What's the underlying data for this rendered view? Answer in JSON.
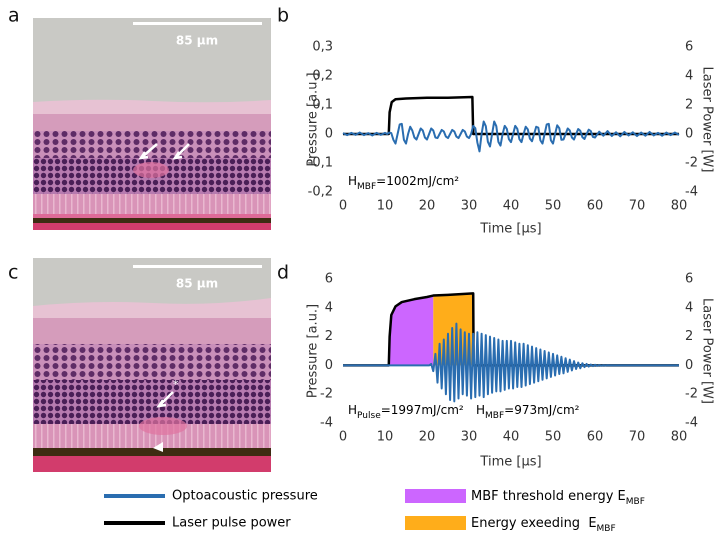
{
  "figure": {
    "panel_labels": [
      "a",
      "b",
      "c",
      "d"
    ],
    "scale_bar_labels": [
      "85 µm",
      "85 µm"
    ]
  },
  "chart_data": [
    {
      "type": "line",
      "xlabel": "Time [µs]",
      "ylabel": "Pressure [a.u.]",
      "y2label": "Laser Power [W]",
      "xlim": [
        0,
        80
      ],
      "xticks": [
        0,
        10,
        20,
        30,
        40,
        50,
        60,
        70,
        80
      ],
      "ylim": [
        -0.2,
        0.3
      ],
      "yticks": [
        {
          "value": -0.2,
          "label": "-0,2"
        },
        {
          "value": -0.1,
          "label": "-0,1"
        },
        0,
        {
          "value": 0.1,
          "label": "0,1"
        },
        {
          "value": 0.2,
          "label": "0,2"
        },
        {
          "value": 0.3,
          "label": "0,3"
        }
      ],
      "y2lim": [
        -4,
        6
      ],
      "y2ticks": [
        -4,
        -2,
        0,
        2,
        4,
        6
      ],
      "grid": false,
      "series": [
        {
          "color": "#2a6db0",
          "x": [
            0,
            1,
            2,
            3,
            4,
            5,
            6,
            7,
            8,
            9,
            10,
            10.5,
            11,
            11.5,
            12,
            12.5,
            13,
            13.5,
            14,
            14.5,
            15,
            15.5,
            16,
            16.5,
            17,
            17.5,
            18,
            18.5,
            19,
            19.5,
            20,
            20.5,
            21,
            21.5,
            22,
            22.5,
            23,
            23.5,
            24,
            24.5,
            25,
            25.5,
            26,
            26.5,
            27,
            27.5,
            28,
            28.5,
            29,
            29.5,
            30,
            30.5,
            31,
            31.5,
            32,
            32.5,
            33,
            33.5,
            34,
            34.5,
            35,
            35.5,
            36,
            36.5,
            37,
            37.5,
            38,
            38.5,
            39,
            39.5,
            40,
            40.5,
            41,
            41.5,
            42,
            42.5,
            43,
            43.5,
            44,
            44.5,
            45,
            45.5,
            46,
            46.5,
            47,
            47.5,
            48,
            48.5,
            49,
            49.5,
            50,
            50.5,
            51,
            51.5,
            52,
            52.5,
            53,
            53.5,
            54,
            54.5,
            55,
            55.5,
            56,
            56.5,
            57,
            57.5,
            58,
            58.5,
            59,
            59.5,
            60,
            61,
            62,
            63,
            64,
            65,
            66,
            67,
            68,
            69,
            70,
            71,
            72,
            73,
            74,
            75,
            76,
            77,
            78,
            79,
            80
          ],
          "values": [
            0.003,
            -0.004,
            0.004,
            -0.003,
            0.005,
            -0.004,
            0.003,
            -0.005,
            0.004,
            -0.003,
            0.004,
            0,
            0.005,
            0.003,
            -0.02,
            -0.033,
            0,
            0.033,
            0.035,
            -0.02,
            -0.033,
            0,
            0.025,
            0.012,
            -0.012,
            -0.019,
            0,
            0.019,
            0.012,
            -0.012,
            -0.019,
            0,
            0.019,
            0.012,
            -0.012,
            -0.014,
            0,
            0.014,
            0.009,
            -0.009,
            -0.014,
            0,
            0.014,
            0.009,
            -0.009,
            -0.014,
            0,
            0.014,
            0.009,
            -0.009,
            -0.014,
            0,
            0.028,
            0.02,
            -0.03,
            -0.06,
            0,
            0.043,
            0.027,
            -0.027,
            -0.043,
            0,
            0.043,
            0.027,
            -0.027,
            -0.04,
            0,
            0.028,
            0.018,
            -0.018,
            -0.028,
            0,
            0.028,
            0.018,
            -0.018,
            -0.028,
            0,
            0.025,
            0.016,
            -0.016,
            -0.025,
            0,
            0.025,
            0.022,
            -0.022,
            -0.033,
            0,
            0.033,
            0.035,
            -0.022,
            -0.033,
            0,
            0.03,
            0.02,
            -0.02,
            -0.019,
            0,
            0.019,
            0.012,
            -0.012,
            -0.019,
            0,
            0.017,
            0.011,
            -0.011,
            -0.017,
            0,
            0.015,
            0.01,
            -0.01,
            -0.012,
            0.008,
            -0.006,
            0.01,
            -0.007,
            0.006,
            -0.008,
            0.007,
            -0.005,
            0.006,
            -0.007,
            0.005,
            -0.006,
            0.007,
            -0.005,
            0.004,
            -0.006,
            0.005,
            -0.004,
            0.005,
            -0.003
          ]
        },
        {
          "color": "#000000",
          "axis": "y2",
          "x": [
            0,
            10.9,
            11.1,
            11.6,
            12.5,
            15,
            20,
            25,
            30.8,
            31,
            80
          ],
          "values": [
            0,
            0,
            1.5,
            2.2,
            2.4,
            2.45,
            2.5,
            2.5,
            2.55,
            0,
            0
          ]
        }
      ],
      "annotations": [
        {
          "text": "H",
          "subscript": "MBF",
          "suffix": "=1002mJ/cm²"
        }
      ]
    },
    {
      "type": "line",
      "xlabel": "Time [µs]",
      "ylabel": "Pressure [a.u.]",
      "y2label": "Laser Power [W]",
      "xlim": [
        0,
        80
      ],
      "xticks": [
        0,
        10,
        20,
        30,
        40,
        50,
        60,
        70,
        80
      ],
      "ylim": [
        -4,
        6
      ],
      "yticks": [
        -4,
        -2,
        0,
        2,
        4,
        6
      ],
      "y2lim": [
        -4,
        6
      ],
      "y2ticks": [
        -4,
        -2,
        0,
        2,
        4,
        6
      ],
      "grid": false,
      "series": [
        {
          "name": "Optoacoustic pressure",
          "color": "#2a6db0",
          "x": [
            0,
            1,
            2,
            3,
            4,
            5,
            6,
            7,
            8,
            9,
            10,
            11,
            12,
            13,
            14,
            15,
            16,
            17,
            18,
            19,
            20,
            20.5,
            21,
            21.5,
            22,
            22.5,
            23,
            23.5,
            24,
            24.5,
            25,
            25.5,
            26,
            26.5,
            27,
            27.5,
            28,
            28.5,
            29,
            29.5,
            30,
            30.5,
            31,
            31.5,
            32,
            32.5,
            33,
            33.5,
            34,
            34.5,
            35,
            35.5,
            36,
            36.5,
            37,
            37.5,
            38,
            38.5,
            39,
            39.5,
            40,
            40.5,
            41,
            41.5,
            42,
            42.5,
            43,
            43.5,
            44,
            44.5,
            45,
            45.5,
            46,
            46.5,
            47,
            47.5,
            48,
            48.5,
            49,
            49.5,
            50,
            50.5,
            51,
            51.5,
            52,
            52.5,
            53,
            53.5,
            54,
            54.5,
            55,
            55.5,
            56,
            56.5,
            57,
            57.5,
            58,
            58.5,
            59,
            59.5,
            60,
            60.5,
            61,
            61.5,
            62,
            62.5,
            63,
            63.5,
            64,
            64.5,
            65,
            66,
            67,
            68,
            69,
            70,
            71,
            72,
            73,
            74,
            75,
            76,
            77,
            78,
            79,
            80
          ],
          "values": [
            0,
            0,
            0,
            0,
            0,
            0,
            0,
            0,
            0,
            0,
            0,
            0,
            0,
            0,
            0,
            0,
            0,
            0,
            0,
            0,
            0,
            0,
            0.1,
            -0.4,
            0.8,
            -1.2,
            1.5,
            -1.6,
            1.8,
            -2.0,
            2.2,
            -2.4,
            2.6,
            -2.5,
            2.9,
            -2.3,
            2.5,
            -2.0,
            2.3,
            -2.1,
            2.2,
            -2.3,
            2.2,
            -2.2,
            2.3,
            -2.1,
            2.2,
            -2.2,
            2.1,
            -2.0,
            2.0,
            -1.9,
            1.9,
            -1.8,
            1.8,
            -1.8,
            1.7,
            -1.7,
            1.7,
            -1.6,
            1.7,
            -1.6,
            1.6,
            -1.5,
            1.5,
            -1.5,
            1.5,
            -1.4,
            1.4,
            -1.3,
            1.3,
            -1.2,
            1.2,
            -1.1,
            1.1,
            -1.0,
            1.0,
            -0.9,
            0.9,
            -0.8,
            0.8,
            -0.7,
            0.7,
            -0.6,
            0.6,
            -0.55,
            0.5,
            -0.45,
            0.4,
            -0.35,
            0.3,
            -0.25,
            0.2,
            -0.2,
            0.15,
            -0.12,
            0.1,
            -0.08,
            0.06,
            -0.05,
            0.04,
            -0.03,
            0.02,
            -0.02,
            0.01,
            -0.01,
            0.01,
            0,
            0,
            0,
            0,
            0,
            0,
            0,
            0,
            0,
            0,
            0,
            0,
            0,
            0,
            0,
            0,
            0,
            0,
            0
          ]
        },
        {
          "name": "Laser pulse power",
          "color": "#000000",
          "axis": "y2",
          "x": [
            0,
            10.9,
            11.1,
            11.5,
            12.5,
            14,
            17,
            20,
            21.5,
            25,
            31,
            31.1,
            80
          ],
          "values": [
            0,
            0,
            2,
            3.5,
            4.1,
            4.4,
            4.6,
            4.75,
            4.85,
            4.9,
            5.0,
            0,
            0
          ]
        }
      ],
      "shaded": [
        {
          "name": "MBF threshold energy E",
          "name_subscript": "MBF",
          "color": "#cc66ff",
          "x": [
            11,
            21.5
          ]
        },
        {
          "name": "Energy exeeding  E",
          "name_subscript": "MBF",
          "color": "#ffad1a",
          "x": [
            21.5,
            31
          ]
        }
      ],
      "annotations": [
        {
          "text": "H",
          "subscript": "Pulse",
          "suffix": "=1997mJ/cm²"
        },
        {
          "text": "H",
          "subscript": "MBF",
          "suffix": "=973mJ/cm²"
        }
      ]
    }
  ]
}
